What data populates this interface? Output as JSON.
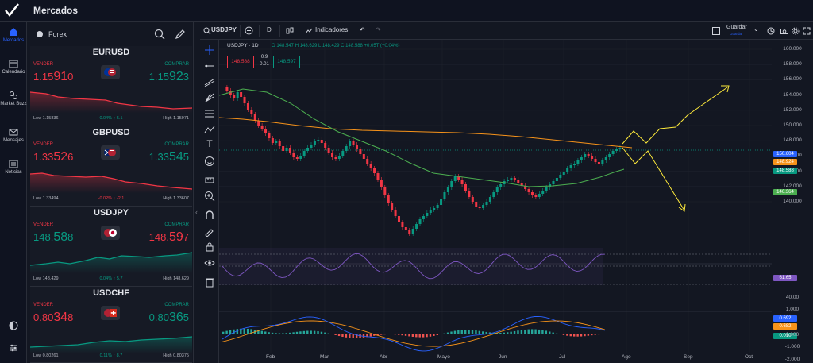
{
  "app": {
    "title": "Mercados"
  },
  "nav": {
    "items": [
      {
        "label": "Mercados",
        "icon": "home-icon",
        "active": true
      },
      {
        "label": "Calendario",
        "icon": "calendar-icon"
      },
      {
        "label": "Market Buzz",
        "icon": "market-buzz-icon"
      },
      {
        "label": "Mensajes",
        "icon": "mail-icon"
      },
      {
        "label": "Noticias",
        "icon": "news-icon"
      }
    ]
  },
  "watchlist": {
    "category": "Forex",
    "cards": [
      {
        "pair": "EURUSD",
        "sell_label": "VENDER",
        "buy_label": "COMPRAR",
        "sell_main": "1.15",
        "sell_big": "91",
        "sell_tail": "0",
        "buy_main": "1.15",
        "buy_big": "92",
        "buy_tail": "3",
        "low": "Low 1.15836",
        "high": "High 1.15971",
        "change": "0.04%  ↑ 5.1",
        "trend": "down",
        "sell_color": "#f23645",
        "buy_color": "#089981"
      },
      {
        "pair": "GBPUSD",
        "sell_label": "VENDER",
        "buy_label": "COMPRAR",
        "sell_main": "1.33",
        "sell_big": "52",
        "sell_tail": "6",
        "buy_main": "1.33",
        "buy_big": "54",
        "buy_tail": "5",
        "low": "Low 1.33494",
        "high": "High 1.33607",
        "change": "-0.02%  ↓ -2.1",
        "trend": "down",
        "sell_color": "#f23645",
        "buy_color": "#089981"
      },
      {
        "pair": "USDJPY",
        "sell_label": "VENDER",
        "buy_label": "COMPRAR",
        "sell_main": "148.",
        "sell_big": "58",
        "sell_tail": "8",
        "buy_main": "148.",
        "buy_big": "59",
        "buy_tail": "7",
        "low": "Low 148.429",
        "high": "High 148.629",
        "change": "0.04%  ↑ 5.7",
        "trend": "up",
        "sell_color": "#089981",
        "buy_color": "#f23645"
      },
      {
        "pair": "USDCHF",
        "sell_label": "VENDER",
        "buy_label": "COMPRAR",
        "sell_main": "0.80",
        "sell_big": "34",
        "sell_tail": "8",
        "buy_main": "0.80",
        "buy_big": "36",
        "buy_tail": "5",
        "low": "Low 0.80261",
        "high": "High 0.80375",
        "change": "0.11%  ↑ 8.7",
        "trend": "up",
        "sell_color": "#f23645",
        "buy_color": "#089981"
      }
    ]
  },
  "chart": {
    "symbol": "USDJPY",
    "interval": "D",
    "indicators_label": "Indicadores",
    "save_label": "Guardar",
    "save_sub": "Guardar",
    "legend": "USDJPY · 1D",
    "ohlc": "O 148.547  H 148.629  L 148.429  C 148.588  +0.05T (+0.04%)",
    "sell_price": "148.588",
    "buy_price": "148.597",
    "spread_top": "0.9",
    "spread_bottom": "0.01",
    "price_ticks": [
      "160.000",
      "158.000",
      "156.000",
      "154.000",
      "152.000",
      "150.000",
      "148.000",
      "146.000",
      "144.000",
      "142.000",
      "140.000"
    ],
    "badges": [
      {
        "text": "150.604",
        "color": "#2962ff"
      },
      {
        "text": "148.924",
        "color": "#f7931a"
      },
      {
        "text": "148.588",
        "color": "#089981"
      },
      {
        "text": "146.364",
        "color": "#4caf50"
      },
      {
        "text": "61.65",
        "color": "#7e57c2"
      },
      {
        "text": "0.692",
        "color": "#2962ff"
      },
      {
        "text": "0.682",
        "color": "#f7931a"
      },
      {
        "text": "0.010",
        "color": "#089981"
      }
    ],
    "rsi_ticks": [
      "40.00"
    ],
    "macd_ticks": [
      "1.000",
      "0.000",
      "-1.000",
      "-2.000"
    ],
    "months": [
      "Feb",
      "Mar",
      "Abr",
      "Mayo",
      "Jun",
      "Jul",
      "Ago",
      "Sep",
      "Oct"
    ]
  }
}
